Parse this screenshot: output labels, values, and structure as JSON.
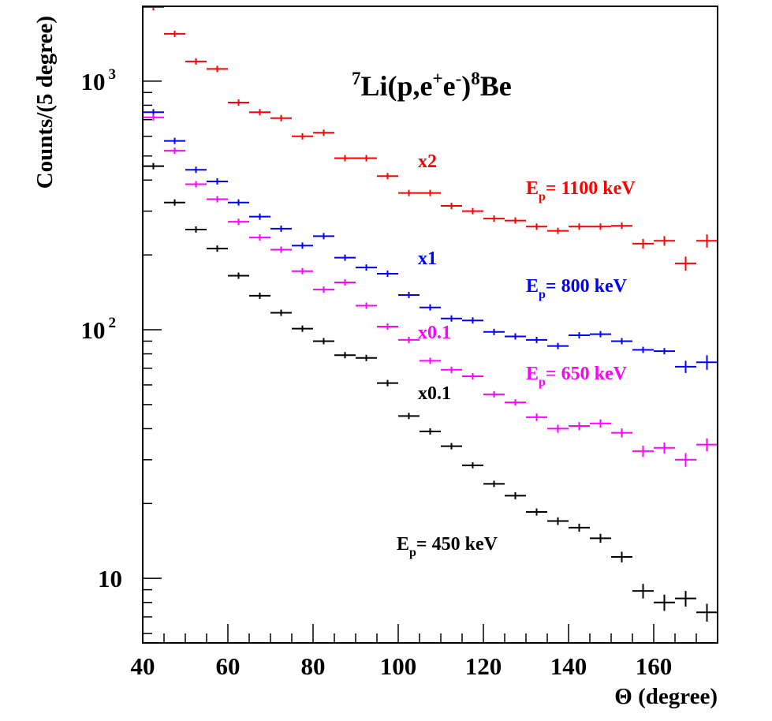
{
  "chart_data": {
    "type": "scatter",
    "title_parts": {
      "sup1": "7",
      "base1": "Li(p,e",
      "sup2": "+",
      "base2": "e",
      "sup3": "-",
      "base3": ")",
      "sup4": "8",
      "base4": "Be"
    },
    "xlabel": "Θ (degree)",
    "ylabel": "Counts/(5 degree)",
    "xlim": [
      40,
      175
    ],
    "ylim": [
      5.5,
      2000
    ],
    "yscale": "log",
    "x_ticks": [
      40,
      60,
      80,
      100,
      120,
      140,
      160
    ],
    "y_ticks": [
      {
        "value": 10,
        "base": "10",
        "exp": ""
      },
      {
        "value": 100,
        "base": "10",
        "exp": "2"
      },
      {
        "value": 1000,
        "base": "10",
        "exp": "3"
      }
    ],
    "x_error_half_width": 2.5,
    "series": [
      {
        "color": "#ff0000",
        "scale_label": "x2",
        "energy_label": {
          "main": "E",
          "sub": "p",
          "rest": "= 1100 keV"
        },
        "x": [
          42.5,
          47.5,
          52.5,
          57.5,
          62.5,
          67.5,
          72.5,
          77.5,
          82.5,
          87.5,
          92.5,
          97.5,
          102.5,
          107.5,
          112.5,
          117.5,
          122.5,
          127.5,
          132.5,
          137.5,
          142.5,
          147.5,
          152.5,
          157.5,
          162.5,
          167.5,
          172.5
        ],
        "y": [
          2050,
          1550,
          1200,
          1120,
          820,
          750,
          710,
          600,
          620,
          490,
          490,
          415,
          355,
          355,
          315,
          300,
          280,
          275,
          260,
          250,
          260,
          260,
          262,
          222,
          228,
          185,
          228
        ],
        "y_err": [
          0,
          0,
          0,
          0,
          0,
          0,
          0,
          0,
          0,
          0,
          0,
          0,
          0,
          0,
          0,
          0,
          0,
          0,
          0,
          0,
          0,
          0,
          0,
          10,
          10,
          12,
          14
        ]
      },
      {
        "color": "#0000ff",
        "scale_label": "x1",
        "energy_label": {
          "main": "E",
          "sub": "p",
          "rest": "= 800 keV"
        },
        "x": [
          42.5,
          47.5,
          52.5,
          57.5,
          62.5,
          67.5,
          72.5,
          77.5,
          82.5,
          87.5,
          92.5,
          97.5,
          102.5,
          107.5,
          112.5,
          117.5,
          122.5,
          127.5,
          132.5,
          137.5,
          142.5,
          147.5,
          152.5,
          157.5,
          162.5,
          167.5,
          172.5
        ],
        "y": [
          750,
          575,
          440,
          395,
          325,
          285,
          255,
          218,
          238,
          195,
          178,
          168,
          138,
          123,
          111,
          109,
          98,
          94,
          91,
          86,
          95,
          96,
          90,
          83,
          82,
          71,
          74
        ],
        "y_err": [
          0,
          0,
          0,
          0,
          0,
          0,
          0,
          0,
          0,
          0,
          0,
          0,
          0,
          0,
          0,
          0,
          0,
          0,
          0,
          0,
          0,
          0,
          0,
          0,
          0,
          4,
          5
        ]
      },
      {
        "color": "#ff00ff",
        "scale_label": "x0.1",
        "energy_label": {
          "main": "E",
          "sub": "p",
          "rest": "= 650 keV"
        },
        "x": [
          42.5,
          47.5,
          52.5,
          57.5,
          62.5,
          67.5,
          72.5,
          77.5,
          82.5,
          87.5,
          92.5,
          97.5,
          102.5,
          107.5,
          112.5,
          117.5,
          122.5,
          127.5,
          132.5,
          137.5,
          142.5,
          147.5,
          152.5,
          157.5,
          162.5,
          167.5,
          172.5
        ],
        "y": [
          715,
          525,
          385,
          335,
          272,
          235,
          210,
          172,
          145,
          155,
          125,
          103,
          91,
          75,
          69,
          65,
          55,
          51,
          44.5,
          40,
          41,
          42,
          38.5,
          32.5,
          33.5,
          30,
          34.5
        ],
        "y_err": [
          0,
          0,
          0,
          0,
          0,
          0,
          0,
          0,
          0,
          0,
          0,
          0,
          0,
          0,
          0,
          0,
          0,
          0,
          1.5,
          1.5,
          1.5,
          1.6,
          1.6,
          1.7,
          1.7,
          1.9,
          2.1
        ]
      },
      {
        "color": "#000000",
        "scale_label": "x0.1",
        "energy_label": {
          "main": "E",
          "sub": "p",
          "rest": "= 450 keV"
        },
        "x": [
          42.5,
          47.5,
          52.5,
          57.5,
          62.5,
          67.5,
          72.5,
          77.5,
          82.5,
          87.5,
          92.5,
          97.5,
          102.5,
          107.5,
          112.5,
          117.5,
          122.5,
          127.5,
          132.5,
          137.5,
          142.5,
          147.5,
          152.5,
          157.5,
          162.5,
          167.5,
          172.5
        ],
        "y": [
          455,
          325,
          253,
          212,
          165,
          137,
          117,
          101,
          90,
          79,
          77,
          61,
          45,
          39,
          34,
          28.5,
          24,
          21.5,
          18.5,
          17,
          16,
          14.5,
          12.2,
          8.9,
          8.0,
          8.3,
          7.3
        ],
        "y_err": [
          0,
          0,
          0,
          0,
          0,
          0,
          0,
          0,
          0,
          0,
          0,
          0,
          0,
          0,
          0,
          0.8,
          0.7,
          0.7,
          0.6,
          0.6,
          0.6,
          0.6,
          0.6,
          0.6,
          0.6,
          0.6,
          0.6
        ]
      }
    ]
  }
}
